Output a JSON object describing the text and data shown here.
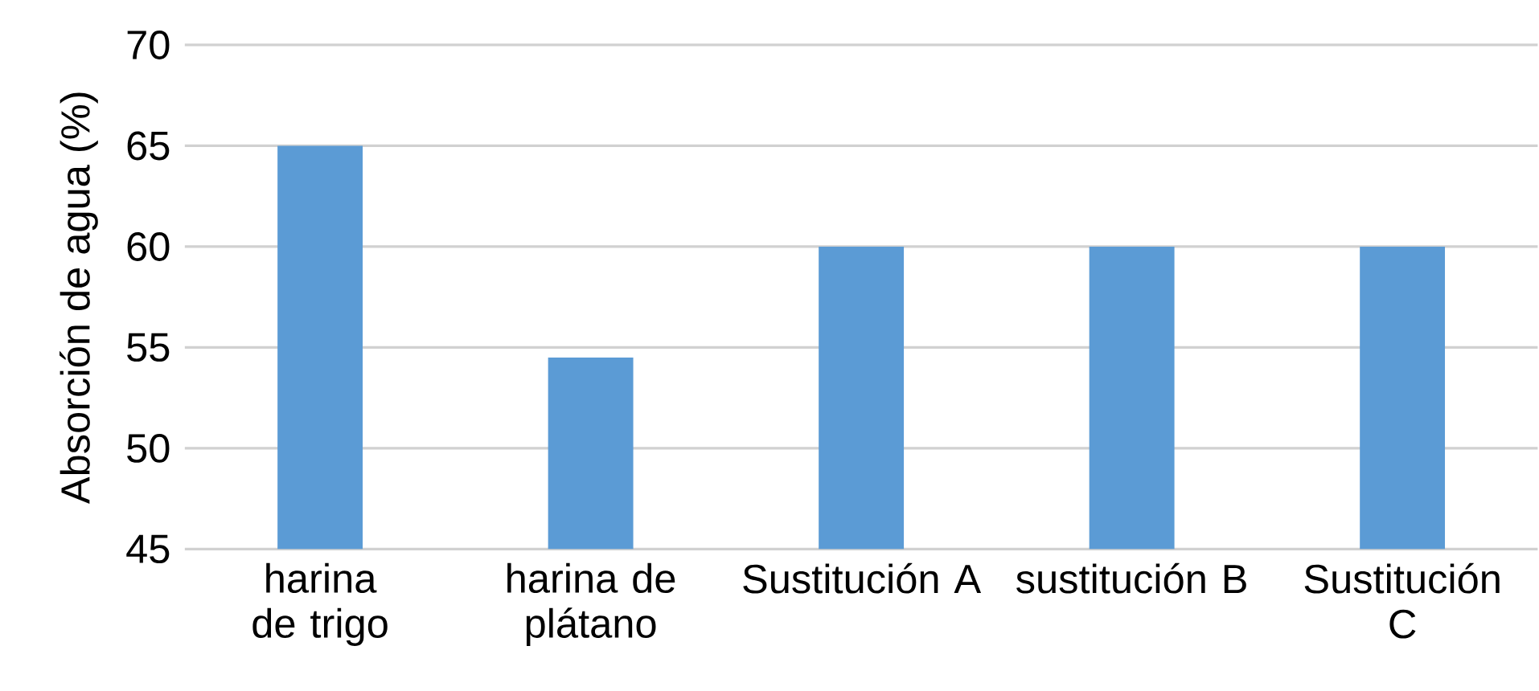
{
  "chart_data": {
    "type": "bar",
    "ylabel": "Absorción de agua (%)",
    "categories": [
      "harina de trigo",
      "harina de plátano",
      "Sustitución A",
      "sustitución B",
      "Sustitución C"
    ],
    "values": [
      65,
      54.5,
      60,
      60,
      60
    ],
    "color": "#5b9bd5",
    "ylim": [
      45,
      70
    ],
    "yticks": [
      45,
      50,
      55,
      60,
      65,
      70
    ],
    "grid": "y"
  }
}
